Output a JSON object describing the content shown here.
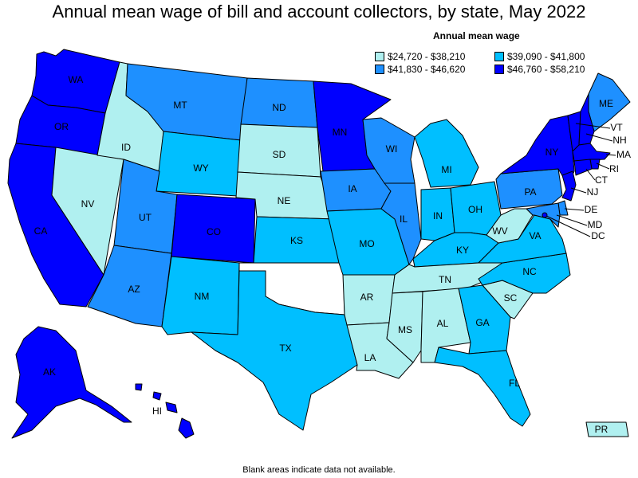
{
  "title": "Annual mean wage of bill and account collectors, by state, May 2022",
  "legend": {
    "title": "Annual mean wage",
    "items": [
      {
        "label": "$24,720 - $38,210",
        "color": "#b0f0f0"
      },
      {
        "label": "$39,090 - $41,800",
        "color": "#00bfff"
      },
      {
        "label": "$41,830 - $46,620",
        "color": "#1e90ff"
      },
      {
        "label": "$46,760 - $58,210",
        "color": "#0000ff"
      }
    ]
  },
  "footnote": "Blank areas indicate data not available.",
  "states": {
    "WA": {
      "label": "WA",
      "tier": 3
    },
    "OR": {
      "label": "OR",
      "tier": 3
    },
    "CA": {
      "label": "CA",
      "tier": 3
    },
    "NV": {
      "label": "NV",
      "tier": 0
    },
    "ID": {
      "label": "ID",
      "tier": 0
    },
    "MT": {
      "label": "MT",
      "tier": 2
    },
    "WY": {
      "label": "WY",
      "tier": 1
    },
    "UT": {
      "label": "UT",
      "tier": 2
    },
    "AZ": {
      "label": "AZ",
      "tier": 2
    },
    "CO": {
      "label": "CO",
      "tier": 3
    },
    "NM": {
      "label": "NM",
      "tier": 1
    },
    "ND": {
      "label": "ND",
      "tier": 2
    },
    "SD": {
      "label": "SD",
      "tier": 0
    },
    "NE": {
      "label": "NE",
      "tier": 0
    },
    "KS": {
      "label": "KS",
      "tier": 1
    },
    "OK": {
      "label": "",
      "tier": null
    },
    "TX": {
      "label": "TX",
      "tier": 1
    },
    "MN": {
      "label": "MN",
      "tier": 3
    },
    "IA": {
      "label": "IA",
      "tier": 2
    },
    "MO": {
      "label": "MO",
      "tier": 1
    },
    "AR": {
      "label": "AR",
      "tier": 0
    },
    "LA": {
      "label": "LA",
      "tier": 0
    },
    "WI": {
      "label": "WI",
      "tier": 2
    },
    "IL": {
      "label": "IL",
      "tier": 2
    },
    "MI": {
      "label": "MI",
      "tier": 1
    },
    "IN": {
      "label": "IN",
      "tier": 1
    },
    "OH": {
      "label": "OH",
      "tier": 1
    },
    "KY": {
      "label": "KY",
      "tier": 1
    },
    "TN": {
      "label": "TN",
      "tier": 0
    },
    "MS": {
      "label": "MS",
      "tier": 0
    },
    "AL": {
      "label": "AL",
      "tier": 0
    },
    "GA": {
      "label": "GA",
      "tier": 1
    },
    "FL": {
      "label": "FL",
      "tier": 1
    },
    "SC": {
      "label": "SC",
      "tier": 0
    },
    "NC": {
      "label": "NC",
      "tier": 1
    },
    "VA": {
      "label": "VA",
      "tier": 1
    },
    "WV": {
      "label": "WV",
      "tier": 0
    },
    "PA": {
      "label": "PA",
      "tier": 2
    },
    "NY": {
      "label": "NY",
      "tier": 3
    },
    "ME": {
      "label": "ME",
      "tier": 2
    },
    "VT": {
      "label": "VT",
      "tier": 3
    },
    "NH": {
      "label": "NH",
      "tier": 3
    },
    "MA": {
      "label": "MA",
      "tier": 3
    },
    "RI": {
      "label": "RI",
      "tier": 3
    },
    "CT": {
      "label": "CT",
      "tier": 3
    },
    "NJ": {
      "label": "NJ",
      "tier": 3
    },
    "DE": {
      "label": "DE",
      "tier": 2
    },
    "MD": {
      "label": "MD",
      "tier": 2
    },
    "DC": {
      "label": "DC",
      "tier": 3
    },
    "AK": {
      "label": "AK",
      "tier": 3
    },
    "HI": {
      "label": "HI",
      "tier": 3
    },
    "PR": {
      "label": "PR",
      "tier": 0
    }
  }
}
